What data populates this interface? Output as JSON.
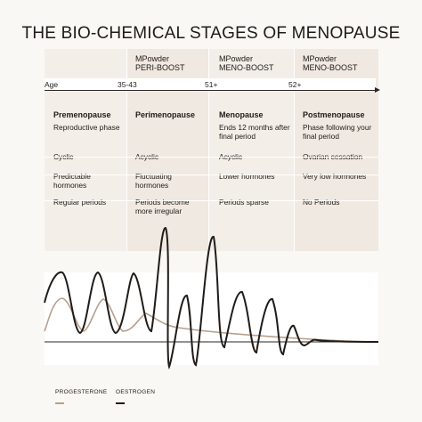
{
  "title": "THE BIO-CHEMICAL STAGES OF MENOPAUSE",
  "products": [
    {
      "brand": "MPowder",
      "name": "PERI-BOOST"
    },
    {
      "brand": "MPowder",
      "name": "MENO-BOOST"
    },
    {
      "brand": "MPowder",
      "name": "MENO-BOOST"
    }
  ],
  "age_axis": {
    "label": "Age",
    "ticks": [
      "35-43",
      "51+",
      "52+"
    ]
  },
  "stages": [
    {
      "name": "Premenopause",
      "description": "Reproductive phase",
      "cycle": "Cyclic",
      "hormones": "Predictable hormones",
      "periods": "Regular periods"
    },
    {
      "name": "Perimenopause",
      "description": "",
      "cycle": "Acyclic",
      "hormones": "Fluctuating hormones",
      "periods": "Periods become more irregular"
    },
    {
      "name": "Menopause",
      "description": "Ends 12 months after final period",
      "cycle": "Acyclic",
      "hormones": "Lower hormones",
      "periods": "Periods sparse"
    },
    {
      "name": "Postmenopause",
      "description": "Phase following your final period",
      "cycle": "Ovarian cessation",
      "hormones": "Very low hormones",
      "periods": "No Periods"
    }
  ],
  "legend": {
    "progesterone": "PROGESTERONE",
    "oestrogen": "OESTROGEN"
  },
  "colors": {
    "progesterone": "#b59f8d",
    "oestrogen": "#1f1b18",
    "panel": "#f3eee8"
  }
}
